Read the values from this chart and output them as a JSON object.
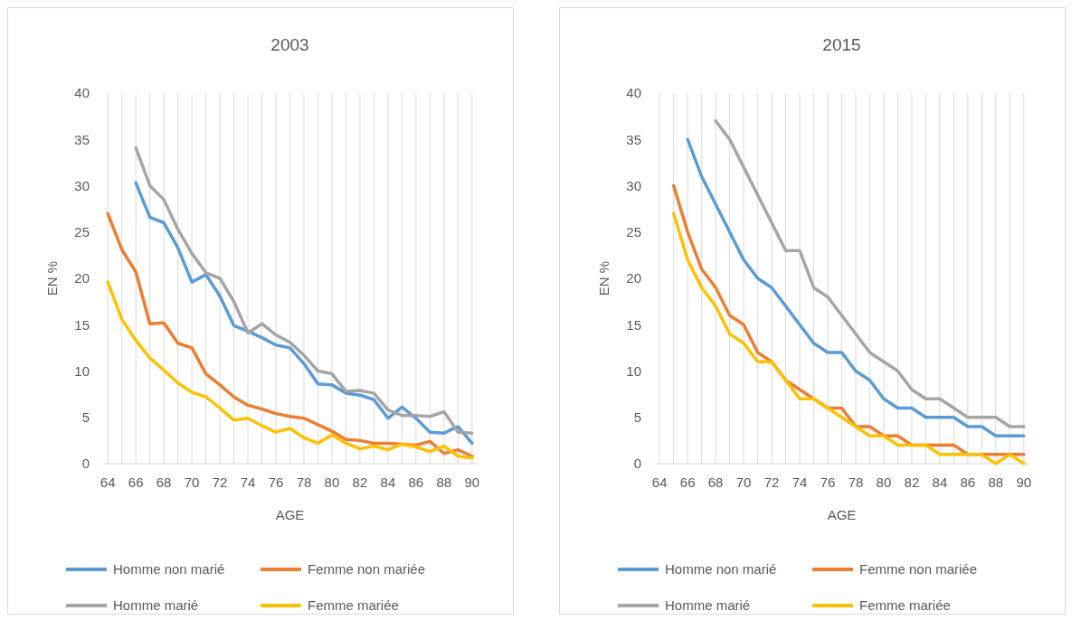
{
  "chart_data": [
    {
      "type": "line",
      "title": "2003",
      "xlabel": "AGE",
      "ylabel": "EN %",
      "legend": "bottom",
      "grid": "x",
      "x": [
        64,
        65,
        66,
        67,
        68,
        69,
        70,
        71,
        72,
        73,
        74,
        75,
        76,
        77,
        78,
        79,
        80,
        81,
        82,
        83,
        84,
        85,
        86,
        87,
        88,
        89,
        90
      ],
      "xlim": [
        63.6,
        90.4
      ],
      "ylim": [
        0,
        40
      ],
      "yticks": [
        0,
        5,
        10,
        15,
        20,
        25,
        30,
        35,
        40
      ],
      "xticks": [
        64,
        {
          "value": 65,
          "label": null
        },
        66,
        {
          "value": 67,
          "label": null
        },
        68,
        {
          "value": 69,
          "label": null
        },
        70,
        {
          "value": 71,
          "label": null
        },
        72,
        {
          "value": 73,
          "label": null
        },
        74,
        {
          "value": 75,
          "label": null
        },
        76,
        {
          "value": 77,
          "label": null
        },
        78,
        {
          "value": 79,
          "label": null
        },
        80,
        {
          "value": 81,
          "label": null
        },
        82,
        {
          "value": 83,
          "label": null
        },
        84,
        {
          "value": 85,
          "label": null
        },
        86,
        {
          "value": 87,
          "label": null
        },
        88,
        {
          "value": 89,
          "label": null
        },
        90
      ],
      "series": [
        {
          "name": "Homme non marié",
          "color": "#5b9bd5",
          "values": [
            null,
            null,
            30.3,
            26.6,
            26,
            23.3,
            19.6,
            20.4,
            18.1,
            14.9,
            14.3,
            13.6,
            12.8,
            12.5,
            10.8,
            8.6,
            8.5,
            7.6,
            7.4,
            6.9,
            4.9,
            6.1,
            4.9,
            3.4,
            3.3,
            4,
            2.2
          ]
        },
        {
          "name": "Femme non mariée",
          "color": "#ed7d31",
          "values": [
            27,
            23.1,
            20.7,
            15.1,
            15.2,
            13,
            12.5,
            9.7,
            8.5,
            7.2,
            6.3,
            5.9,
            5.4,
            5.1,
            4.9,
            4.2,
            3.5,
            2.6,
            2.5,
            2.2,
            2.2,
            2.1,
            2,
            2.4,
            1.1,
            1.5,
            0.8
          ]
        },
        {
          "name": "Homme marié",
          "color": "#a5a5a5",
          "values": [
            null,
            null,
            34.1,
            30,
            28.5,
            25.3,
            22.7,
            20.6,
            20,
            17.5,
            14.1,
            15.1,
            13.9,
            13.1,
            11.7,
            10,
            9.7,
            7.8,
            7.9,
            7.6,
            5.8,
            5.2,
            5.2,
            5.1,
            5.6,
            3.4,
            3.3
          ]
        },
        {
          "name": "Femme mariée",
          "color": "#ffc000",
          "values": [
            19.6,
            15.6,
            13.3,
            11.4,
            10.1,
            8.7,
            7.7,
            7.2,
            6,
            4.7,
            4.9,
            4.1,
            3.4,
            3.8,
            2.8,
            2.2,
            3.1,
            2.2,
            1.6,
            1.9,
            1.5,
            2.1,
            1.8,
            1.3,
            1.9,
            0.8,
            0.6
          ]
        }
      ]
    },
    {
      "type": "line",
      "title": "2015",
      "xlabel": "AGE",
      "ylabel": "EN %",
      "legend": "bottom",
      "grid": "x",
      "x": [
        65,
        66,
        67,
        68,
        69,
        70,
        71,
        72,
        73,
        74,
        75,
        76,
        77,
        78,
        79,
        80,
        81,
        82,
        83,
        84,
        85,
        86,
        87,
        88,
        89,
        90
      ],
      "xlim": [
        63.6,
        90.4
      ],
      "ylim": [
        0,
        40
      ],
      "yticks": [
        0,
        5,
        10,
        15,
        20,
        25,
        30,
        35,
        40
      ],
      "xticks": [
        64,
        {
          "value": 65,
          "label": null
        },
        66,
        {
          "value": 67,
          "label": null
        },
        68,
        {
          "value": 69,
          "label": null
        },
        70,
        {
          "value": 71,
          "label": null
        },
        72,
        {
          "value": 73,
          "label": null
        },
        74,
        {
          "value": 75,
          "label": null
        },
        76,
        {
          "value": 77,
          "label": null
        },
        78,
        {
          "value": 79,
          "label": null
        },
        80,
        {
          "value": 81,
          "label": null
        },
        82,
        {
          "value": 83,
          "label": null
        },
        84,
        {
          "value": 85,
          "label": null
        },
        86,
        {
          "value": 87,
          "label": null
        },
        88,
        {
          "value": 89,
          "label": null
        },
        90
      ],
      "series": [
        {
          "name": "Homme non marié",
          "color": "#5b9bd5",
          "values": [
            null,
            35,
            31,
            28,
            25,
            22,
            20,
            19,
            17,
            15,
            13,
            12,
            12,
            10,
            9,
            7,
            6,
            6,
            5,
            5,
            5,
            4,
            4,
            3,
            3,
            3
          ]
        },
        {
          "name": "Femme non mariée",
          "color": "#ed7d31",
          "values": [
            30,
            25,
            21,
            19,
            16,
            15,
            12,
            11,
            9,
            8,
            7,
            6,
            6,
            4,
            4,
            3,
            3,
            2,
            2,
            2,
            2,
            1,
            1,
            1,
            1,
            1
          ]
        },
        {
          "name": "Homme marié",
          "color": "#a5a5a5",
          "values": [
            null,
            null,
            null,
            37,
            35,
            32,
            29,
            26,
            23,
            23,
            19,
            18,
            16,
            14,
            12,
            11,
            10,
            8,
            7,
            7,
            6,
            5,
            5,
            5,
            4,
            4
          ]
        },
        {
          "name": "Femme mariée",
          "color": "#ffc000",
          "values": [
            27,
            22,
            19,
            17,
            14,
            13,
            11,
            11,
            9,
            7,
            7,
            6,
            5,
            4,
            3,
            3,
            2,
            2,
            2,
            1,
            1,
            1,
            1,
            0,
            1,
            0
          ]
        }
      ]
    }
  ]
}
